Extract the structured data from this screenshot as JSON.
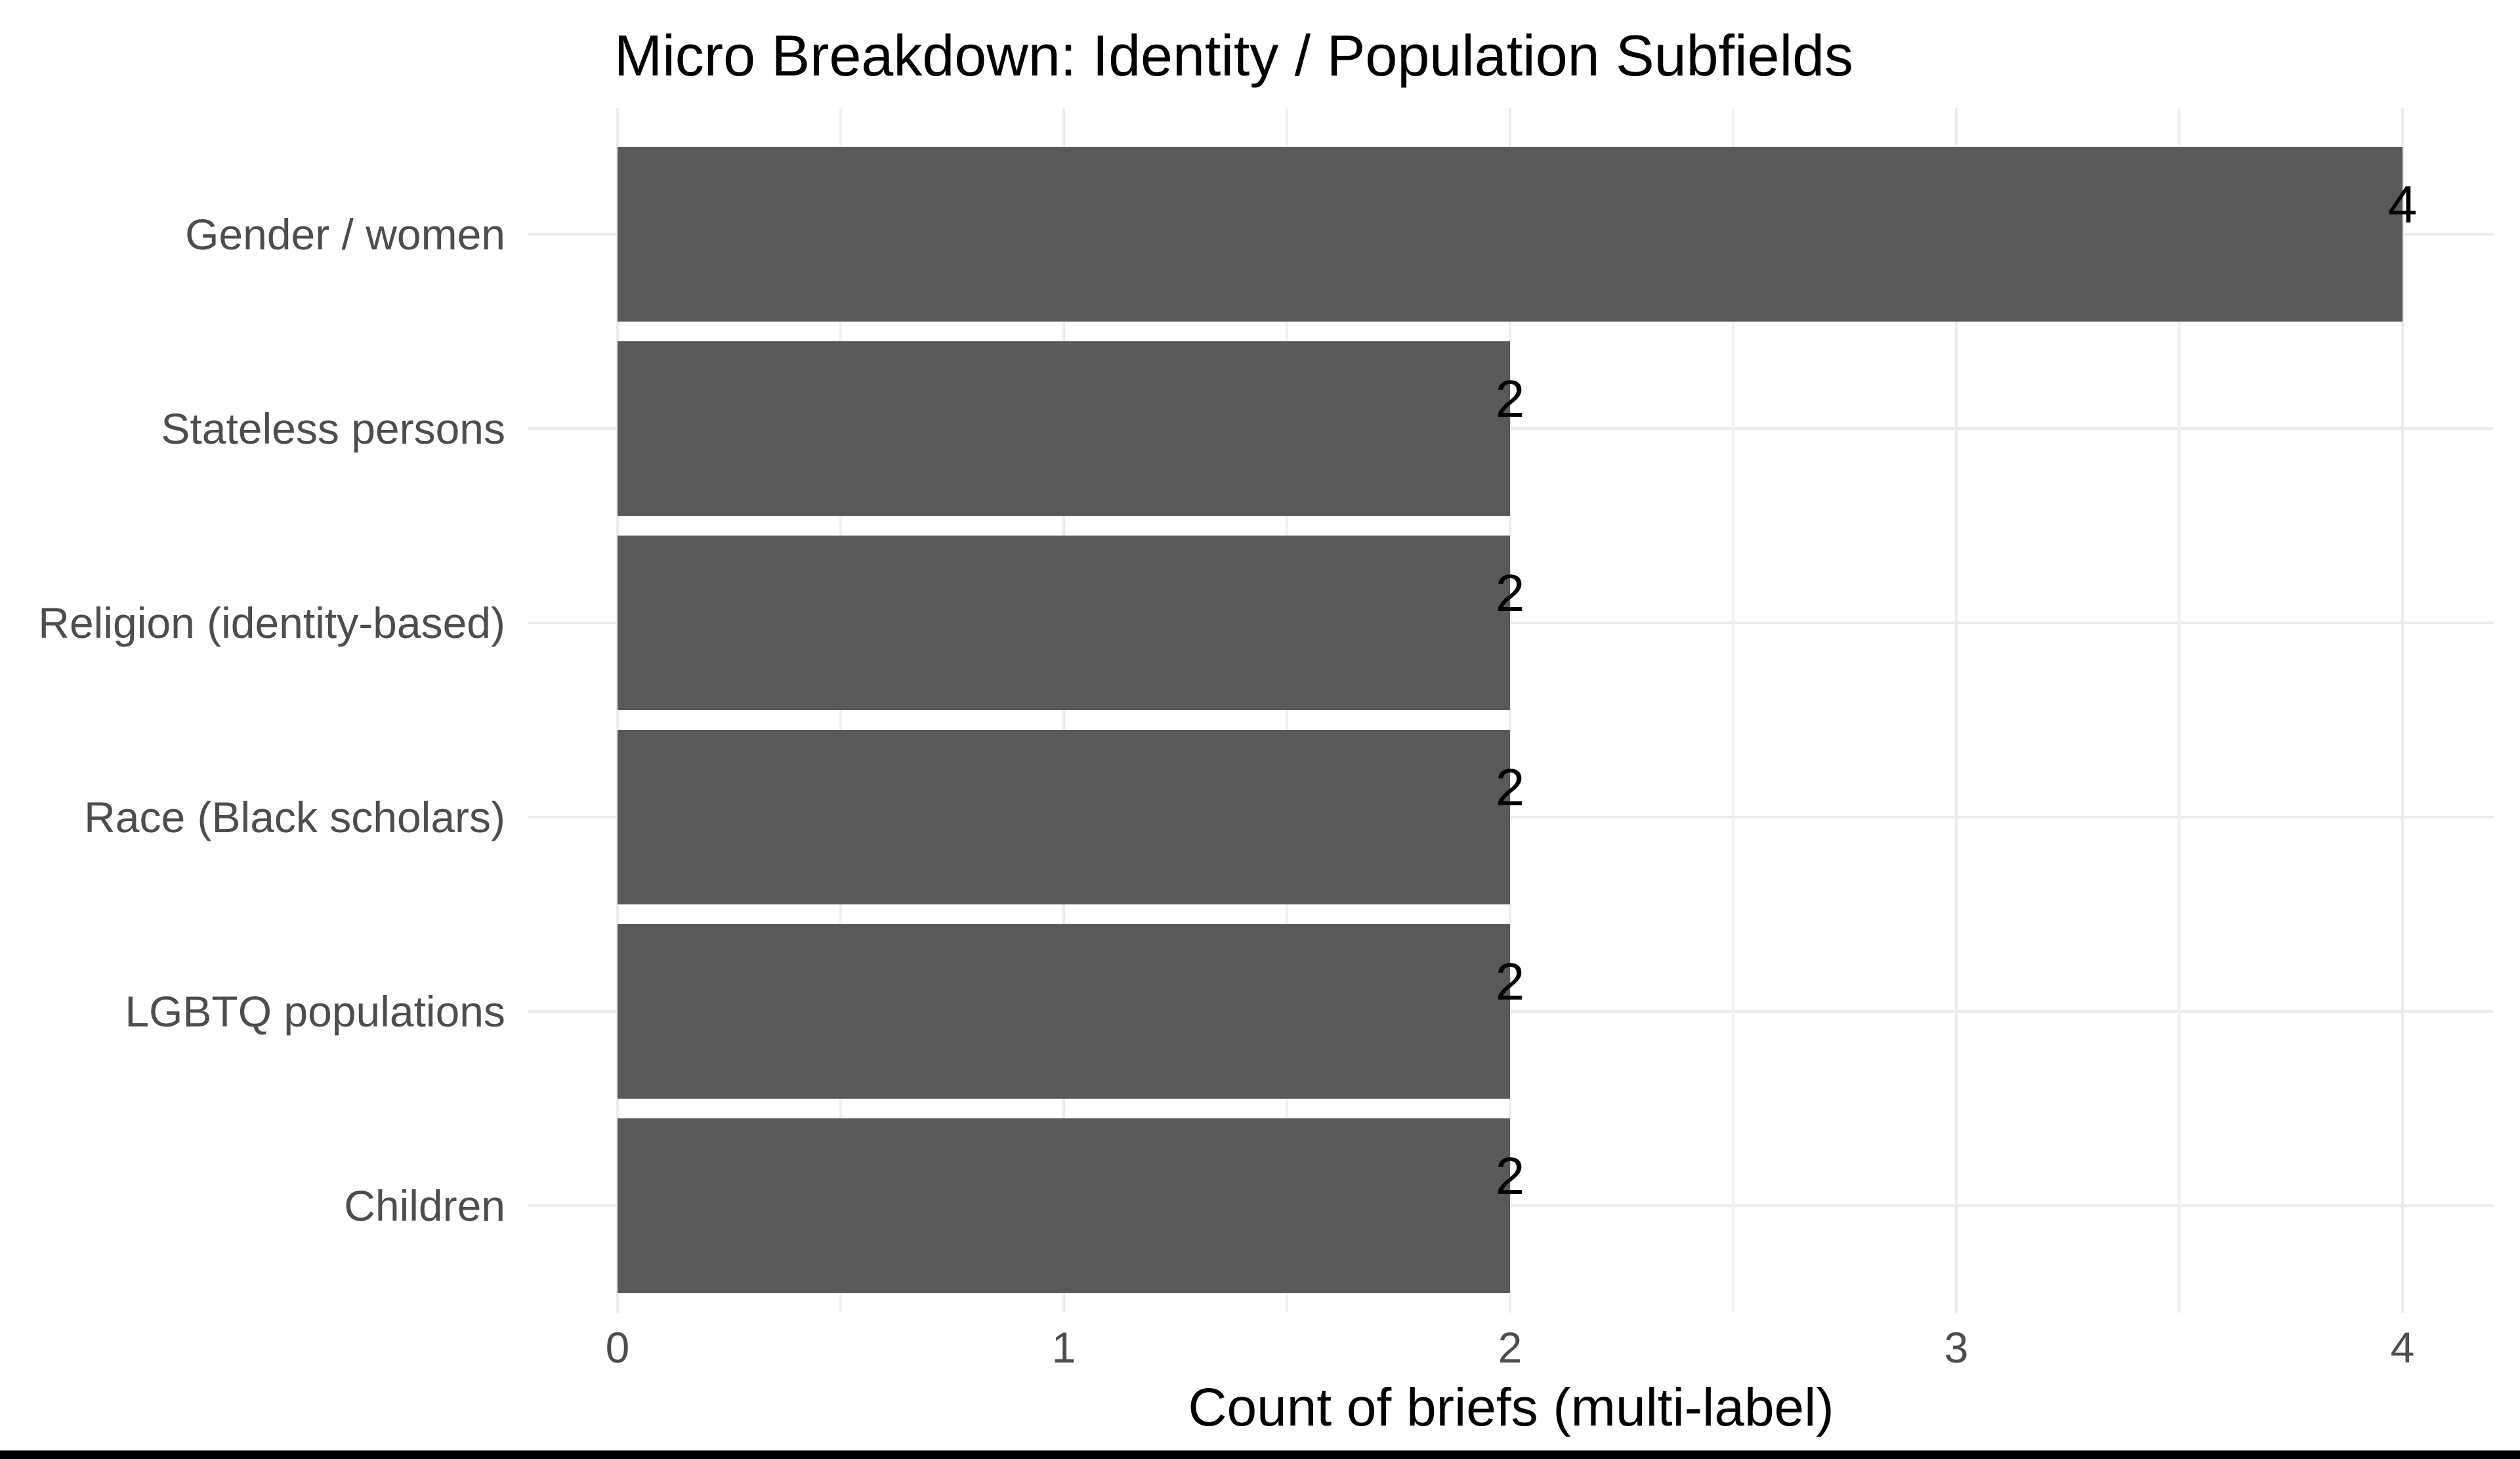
{
  "figure": {
    "title": "Micro Breakdown: Identity / Population Subfields",
    "xlabel": "Count of briefs (multi-label)"
  },
  "chart_data": {
    "type": "bar",
    "orientation": "horizontal",
    "title": "Micro Breakdown: Identity / Population Subfields",
    "xlabel": "Count of briefs (multi-label)",
    "ylabel": "",
    "categories": [
      "Gender / women",
      "Stateless persons",
      "Religion (identity-based)",
      "Race (Black scholars)",
      "LGBTQ populations",
      "Children"
    ],
    "values": [
      4,
      2,
      2,
      2,
      2,
      2
    ],
    "bar_value_labels": [
      "4",
      "2",
      "2",
      "2",
      "2",
      "2"
    ],
    "xlim": [
      0,
      4
    ],
    "x_major_ticks": [
      0,
      1,
      2,
      3,
      4
    ],
    "x_minor_ticks": [
      0.5,
      1.5,
      2.5,
      3.5
    ],
    "grid": "light vertical major+minor gridlines, light horizontal gridline per category row",
    "legend_position": "none",
    "colors": {
      "bar_fill": "#595959",
      "grid_major": "#ebebeb",
      "grid_minor": "#f1f1f1",
      "axis_text": "#4d4d4d",
      "title_text": "#000000",
      "value_label_text": "#000000",
      "background": "#ffffff",
      "bottom_border": "#000000"
    }
  }
}
